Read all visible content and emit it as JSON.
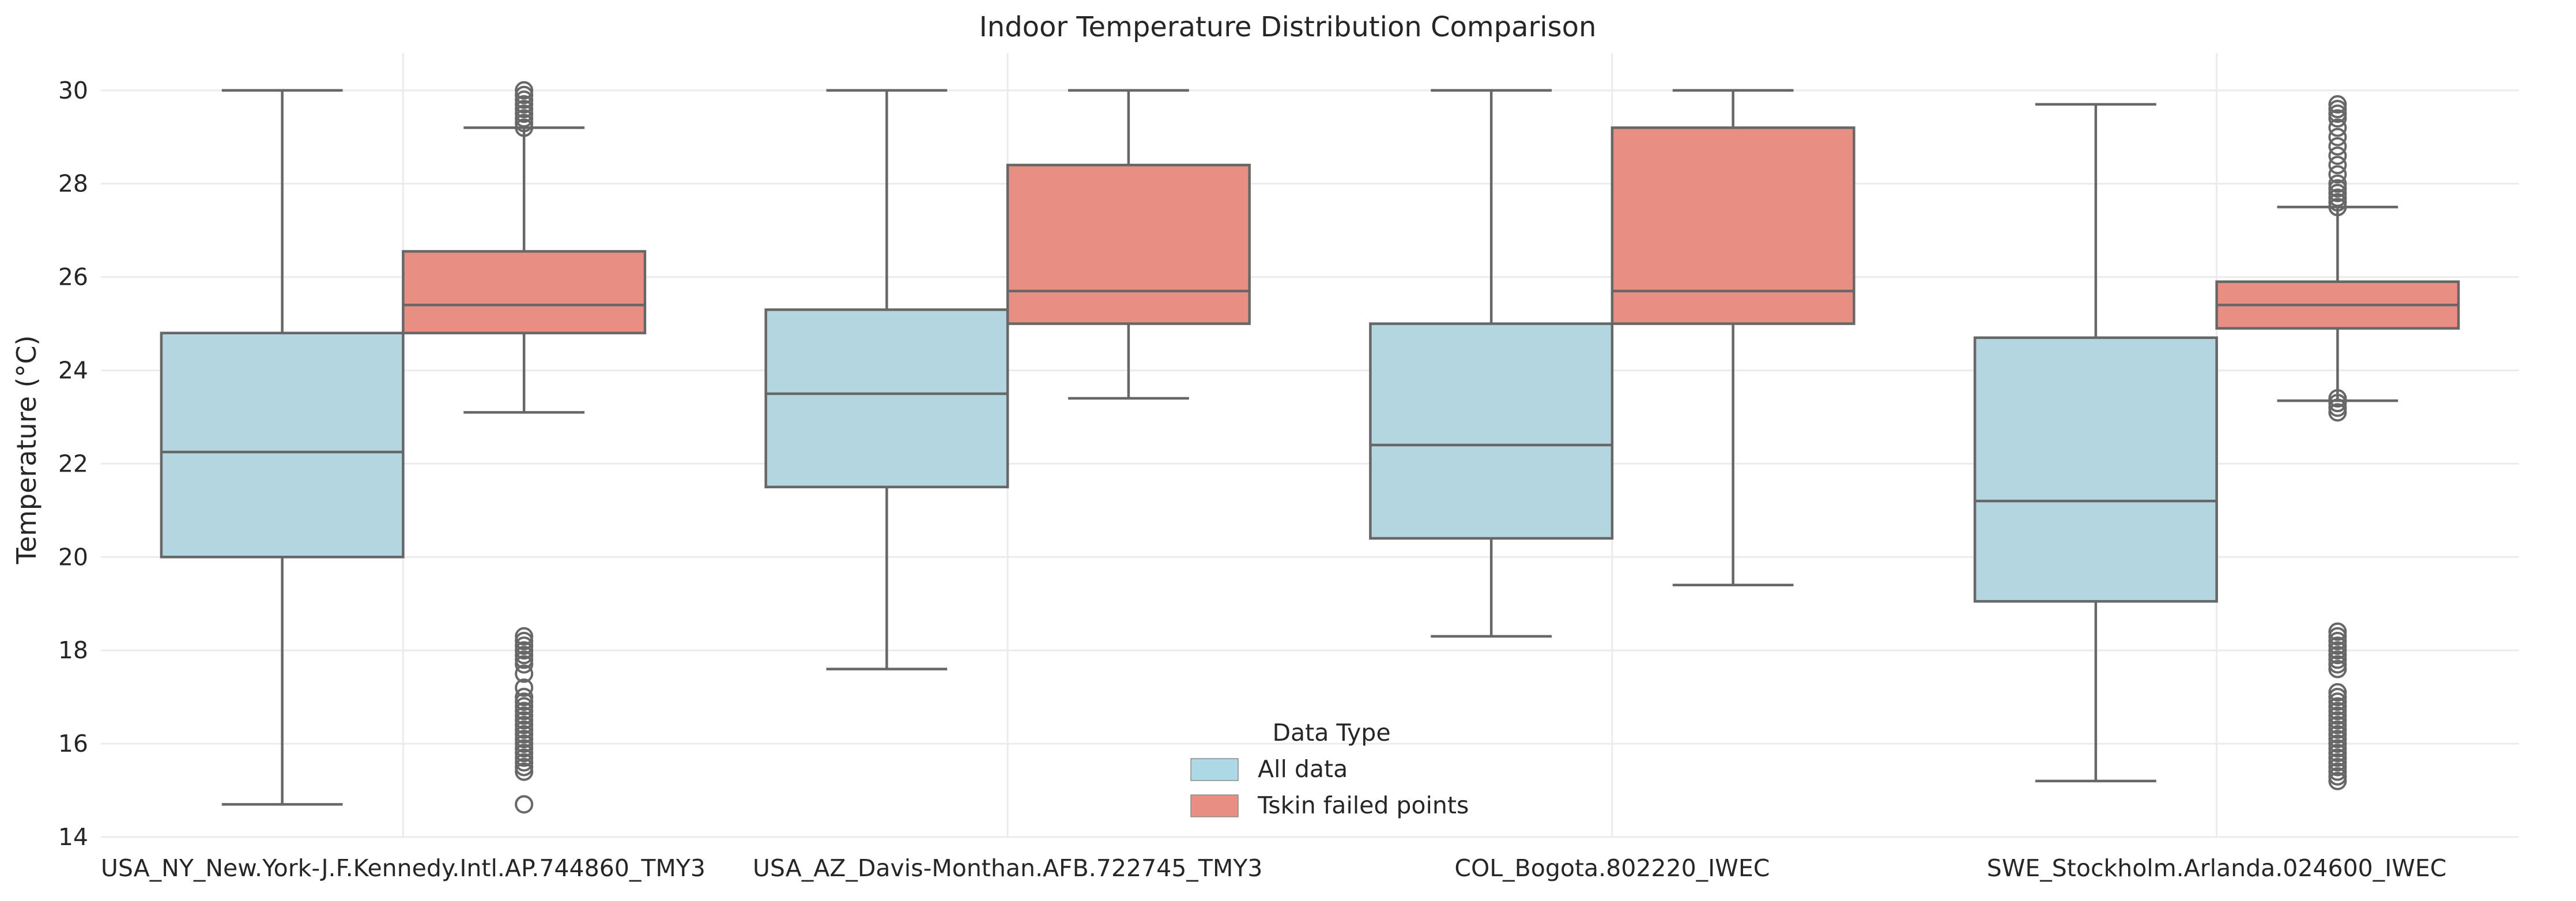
{
  "chart_data": {
    "type": "box",
    "title": "Indoor Temperature Distribution Comparison",
    "xlabel": "",
    "ylabel": "Temperature (°C)",
    "ylim": [
      14,
      30.8
    ],
    "yticks": [
      14,
      16,
      18,
      20,
      22,
      24,
      26,
      28,
      30
    ],
    "grid": true,
    "legend": {
      "title": "Data Type",
      "placement": "bottom-center"
    },
    "categories": [
      "USA_NY_New.York-J.F.Kennedy.Intl.AP.744860_TMY3",
      "USA_AZ_Davis-Monthan.AFB.722745_TMY3",
      "COL_Bogota.802220_IWEC",
      "SWE_Stockholm.Arlanda.024600_IWEC"
    ],
    "series": [
      {
        "name": "All data",
        "color": "#add8e6",
        "boxes": [
          {
            "whisker_low": 14.7,
            "q1": 20.0,
            "median": 22.25,
            "q3": 24.8,
            "whisker_high": 30.0,
            "fliers": []
          },
          {
            "whisker_low": 17.6,
            "q1": 21.5,
            "median": 23.5,
            "q3": 25.3,
            "whisker_high": 30.0,
            "fliers": []
          },
          {
            "whisker_low": 18.3,
            "q1": 20.4,
            "median": 22.4,
            "q3": 25.0,
            "whisker_high": 30.0,
            "fliers": []
          },
          {
            "whisker_low": 15.2,
            "q1": 19.05,
            "median": 21.2,
            "q3": 24.7,
            "whisker_high": 29.7,
            "fliers": []
          }
        ]
      },
      {
        "name": "Tskin failed points",
        "color": "#fa8072",
        "boxes": [
          {
            "whisker_low": 23.1,
            "q1": 24.8,
            "median": 25.4,
            "q3": 26.55,
            "whisker_high": 29.2,
            "fliers": [
              14.7,
              15.4,
              15.5,
              15.6,
              15.7,
              15.8,
              15.9,
              16.0,
              16.1,
              16.2,
              16.3,
              16.4,
              16.5,
              16.6,
              16.7,
              16.8,
              16.9,
              17.0,
              17.2,
              17.5,
              17.7,
              17.8,
              17.9,
              18.0,
              18.1,
              18.2,
              18.3,
              29.2,
              29.3,
              29.4,
              29.5,
              29.6,
              29.7,
              29.8,
              29.9,
              30.0
            ]
          },
          {
            "whisker_low": 23.4,
            "q1": 25.0,
            "median": 25.7,
            "q3": 28.4,
            "whisker_high": 30.0,
            "fliers": []
          },
          {
            "whisker_low": 19.4,
            "q1": 25.0,
            "median": 25.7,
            "q3": 29.2,
            "whisker_high": 30.0,
            "fliers": []
          },
          {
            "whisker_low": 23.35,
            "q1": 24.9,
            "median": 25.4,
            "q3": 25.9,
            "whisker_high": 27.5,
            "fliers": [
              15.2,
              15.3,
              15.4,
              15.5,
              15.6,
              15.7,
              15.8,
              15.9,
              16.0,
              16.1,
              16.2,
              16.3,
              16.4,
              16.5,
              16.6,
              16.7,
              16.8,
              16.9,
              17.0,
              17.1,
              17.6,
              17.7,
              17.8,
              17.9,
              18.0,
              18.1,
              18.2,
              18.3,
              18.4,
              23.1,
              23.2,
              23.3,
              23.4,
              27.5,
              27.6,
              27.7,
              27.8,
              27.9,
              28.0,
              28.2,
              28.4,
              28.6,
              28.8,
              29.0,
              29.2,
              29.4,
              29.5,
              29.6,
              29.7
            ]
          }
        ]
      }
    ]
  }
}
